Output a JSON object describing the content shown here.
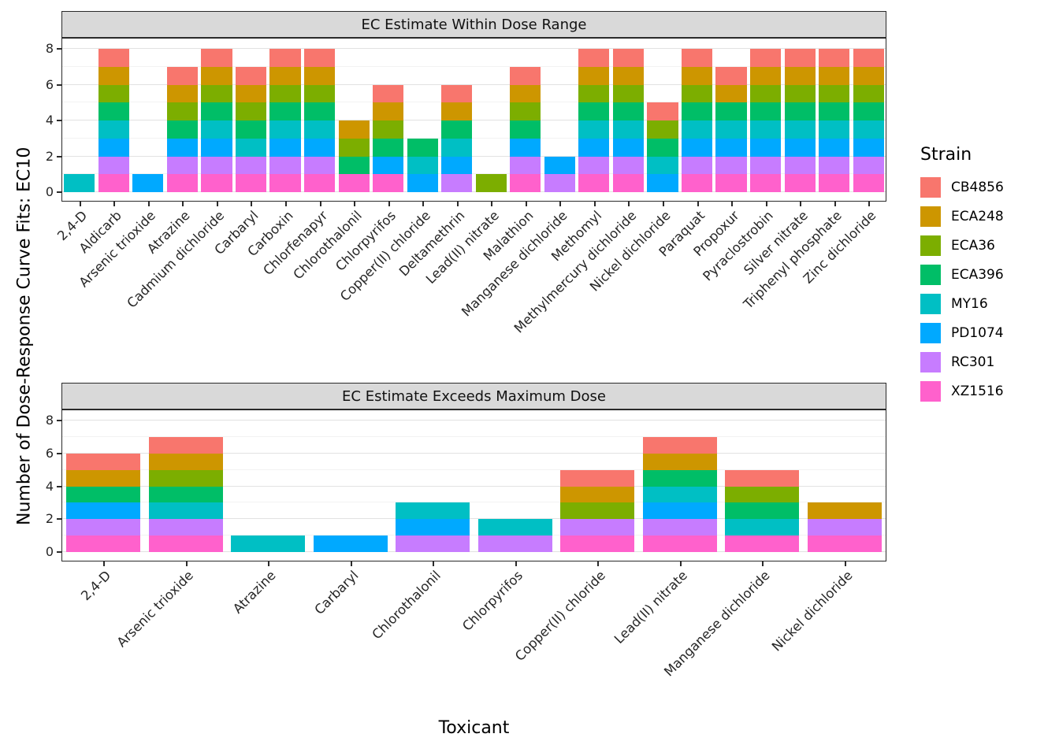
{
  "figure": {
    "y_axis_title": "Number of Dose-Response Curve Fits: EC10",
    "x_axis_title": "Toxicant",
    "legend_title": "Strain"
  },
  "strains": [
    {
      "name": "CB4856",
      "color": "#F8766D"
    },
    {
      "name": "ECA248",
      "color": "#CD9600"
    },
    {
      "name": "ECA36",
      "color": "#7CAE00"
    },
    {
      "name": "ECA396",
      "color": "#00BE67"
    },
    {
      "name": "MY16",
      "color": "#00BFC4"
    },
    {
      "name": "PD1074",
      "color": "#00A9FF"
    },
    {
      "name": "RC301",
      "color": "#C77CFF"
    },
    {
      "name": "XZ1516",
      "color": "#FF61CC"
    }
  ],
  "stack_order_bottom_to_top": [
    "XZ1516",
    "RC301",
    "PD1074",
    "MY16",
    "ECA396",
    "ECA36",
    "ECA248",
    "CB4856"
  ],
  "chart_data": [
    {
      "type": "bar",
      "stacked": true,
      "panel_title": "EC Estimate Within Dose Range",
      "xlabel": "Toxicant",
      "ylabel": "Number of Dose-Response Curve Fits: EC10",
      "ylim": [
        0,
        8
      ],
      "yticks": [
        0,
        2,
        4,
        6,
        8
      ],
      "grid": true,
      "legend_position": "right",
      "categories": [
        "2,4-D",
        "Aldicarb",
        "Arsenic trioxide",
        "Atrazine",
        "Cadmium dichloride",
        "Carbaryl",
        "Carboxin",
        "Chlorfenapyr",
        "Chlorothalonil",
        "Chlorpyrifos",
        "Copper(II) chloride",
        "Deltamethrin",
        "Lead(II) nitrate",
        "Malathion",
        "Manganese dichloride",
        "Methomyl",
        "Methylmercury dichloride",
        "Nickel dichloride",
        "Paraquat",
        "Propoxur",
        "Pyraclostrobin",
        "Silver nitrate",
        "Triphenyl phosphate",
        "Zinc dichloride"
      ],
      "values": [
        1,
        8,
        1,
        7,
        8,
        7,
        8,
        8,
        4,
        6,
        3,
        6,
        1,
        7,
        2,
        8,
        8,
        5,
        8,
        7,
        8,
        8,
        8,
        8
      ],
      "stacks": [
        [
          "MY16"
        ],
        [
          "XZ1516",
          "RC301",
          "PD1074",
          "MY16",
          "ECA396",
          "ECA36",
          "ECA248",
          "CB4856"
        ],
        [
          "PD1074"
        ],
        [
          "XZ1516",
          "RC301",
          "PD1074",
          "ECA396",
          "ECA36",
          "ECA248",
          "CB4856"
        ],
        [
          "XZ1516",
          "RC301",
          "PD1074",
          "MY16",
          "ECA396",
          "ECA36",
          "ECA248",
          "CB4856"
        ],
        [
          "XZ1516",
          "RC301",
          "MY16",
          "ECA396",
          "ECA36",
          "ECA248",
          "CB4856"
        ],
        [
          "XZ1516",
          "RC301",
          "PD1074",
          "MY16",
          "ECA396",
          "ECA36",
          "ECA248",
          "CB4856"
        ],
        [
          "XZ1516",
          "RC301",
          "PD1074",
          "MY16",
          "ECA396",
          "ECA36",
          "ECA248",
          "CB4856"
        ],
        [
          "XZ1516",
          "ECA396",
          "ECA36",
          "ECA248"
        ],
        [
          "XZ1516",
          "PD1074",
          "ECA396",
          "ECA36",
          "ECA248",
          "CB4856"
        ],
        [
          "PD1074",
          "MY16",
          "ECA396"
        ],
        [
          "RC301",
          "PD1074",
          "MY16",
          "ECA396",
          "ECA248",
          "CB4856"
        ],
        [
          "ECA36"
        ],
        [
          "XZ1516",
          "RC301",
          "PD1074",
          "ECA396",
          "ECA36",
          "ECA248",
          "CB4856"
        ],
        [
          "RC301",
          "PD1074"
        ],
        [
          "XZ1516",
          "RC301",
          "PD1074",
          "MY16",
          "ECA396",
          "ECA36",
          "ECA248",
          "CB4856"
        ],
        [
          "XZ1516",
          "RC301",
          "PD1074",
          "MY16",
          "ECA396",
          "ECA36",
          "ECA248",
          "CB4856"
        ],
        [
          "PD1074",
          "MY16",
          "ECA396",
          "ECA36",
          "CB4856"
        ],
        [
          "XZ1516",
          "RC301",
          "PD1074",
          "MY16",
          "ECA396",
          "ECA36",
          "ECA248",
          "CB4856"
        ],
        [
          "XZ1516",
          "RC301",
          "PD1074",
          "MY16",
          "ECA396",
          "ECA248",
          "CB4856"
        ],
        [
          "XZ1516",
          "RC301",
          "PD1074",
          "MY16",
          "ECA396",
          "ECA36",
          "ECA248",
          "CB4856"
        ],
        [
          "XZ1516",
          "RC301",
          "PD1074",
          "MY16",
          "ECA396",
          "ECA36",
          "ECA248",
          "CB4856"
        ],
        [
          "XZ1516",
          "RC301",
          "PD1074",
          "MY16",
          "ECA396",
          "ECA36",
          "ECA248",
          "CB4856"
        ],
        [
          "XZ1516",
          "RC301",
          "PD1074",
          "MY16",
          "ECA396",
          "ECA36",
          "ECA248",
          "CB4856"
        ]
      ]
    },
    {
      "type": "bar",
      "stacked": true,
      "panel_title": "EC Estimate Exceeds Maximum Dose",
      "xlabel": "Toxicant",
      "ylabel": "Number of Dose-Response Curve Fits: EC10",
      "ylim": [
        0,
        8
      ],
      "yticks": [
        0,
        2,
        4,
        6,
        8
      ],
      "grid": true,
      "legend_position": "right",
      "categories": [
        "2,4-D",
        "Arsenic trioxide",
        "Atrazine",
        "Carbaryl",
        "Chlorothalonil",
        "Chlorpyrifos",
        "Copper(II) chloride",
        "Lead(II) nitrate",
        "Manganese dichloride",
        "Nickel dichloride"
      ],
      "values": [
        6,
        7,
        1,
        1,
        3,
        2,
        5,
        7,
        5,
        3
      ],
      "stacks": [
        [
          "XZ1516",
          "RC301",
          "PD1074",
          "ECA396",
          "ECA248",
          "CB4856"
        ],
        [
          "XZ1516",
          "RC301",
          "MY16",
          "ECA396",
          "ECA36",
          "ECA248",
          "CB4856"
        ],
        [
          "MY16"
        ],
        [
          "PD1074"
        ],
        [
          "RC301",
          "PD1074",
          "MY16"
        ],
        [
          "RC301",
          "MY16"
        ],
        [
          "XZ1516",
          "RC301",
          "ECA36",
          "ECA248",
          "CB4856"
        ],
        [
          "XZ1516",
          "RC301",
          "PD1074",
          "MY16",
          "ECA396",
          "ECA248",
          "CB4856"
        ],
        [
          "XZ1516",
          "MY16",
          "ECA396",
          "ECA36",
          "CB4856"
        ],
        [
          "XZ1516",
          "RC301",
          "ECA248"
        ]
      ]
    }
  ]
}
